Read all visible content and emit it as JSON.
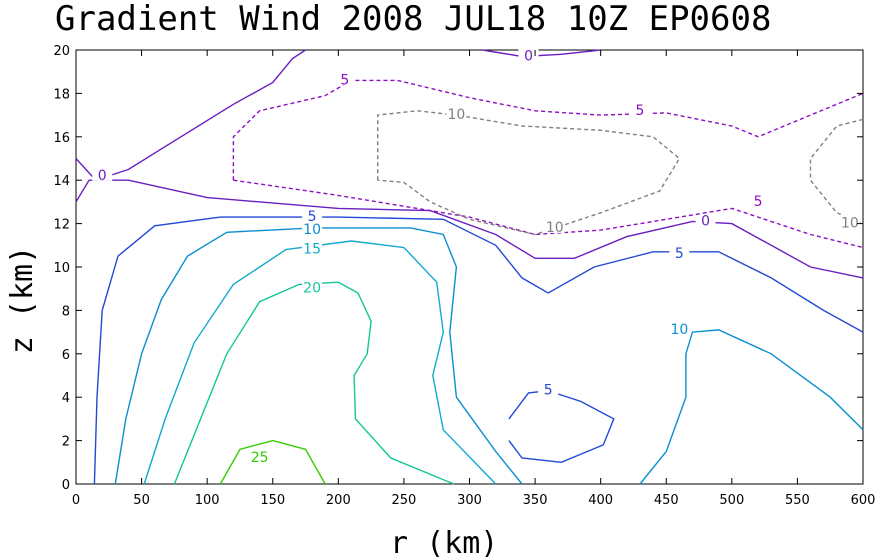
{
  "chart_data": {
    "type": "contour",
    "title": "Gradient Wind 2008 JUL18 10Z  EP0608",
    "xlabel": "r (km)",
    "ylabel": "z (km)",
    "xlim": [
      0,
      600
    ],
    "ylim": [
      0,
      20
    ],
    "x_ticks": [
      0,
      50,
      100,
      150,
      200,
      250,
      300,
      350,
      400,
      450,
      500,
      550,
      600
    ],
    "y_ticks": [
      0,
      2,
      4,
      6,
      8,
      10,
      12,
      14,
      16,
      18,
      20
    ],
    "contours": [
      {
        "level": 25,
        "color": "#33cc00",
        "dashed": false,
        "paths": [
          [
            [
              110,
              0
            ],
            [
              125,
              1.6
            ],
            [
              150,
              2.0
            ],
            [
              175,
              1.6
            ],
            [
              190,
              0
            ]
          ]
        ],
        "labels": [
          {
            "r": 140,
            "z": 1.2,
            "text": "25"
          }
        ]
      },
      {
        "level": 20,
        "color": "#13c69a",
        "dashed": false,
        "paths": [
          [
            [
              75,
              0
            ],
            [
              95,
              3
            ],
            [
              115,
              6
            ],
            [
              140,
              8.4
            ],
            [
              170,
              9.2
            ],
            [
              200,
              9.3
            ],
            [
              215,
              8.8
            ],
            [
              225,
              7.5
            ],
            [
              222,
              6
            ],
            [
              212,
              5
            ],
            [
              213,
              3
            ],
            [
              240,
              1.2
            ],
            [
              288,
              0
            ]
          ]
        ],
        "labels": [
          {
            "r": 180,
            "z": 9.0,
            "text": "20"
          }
        ]
      },
      {
        "level": 15,
        "color": "#12a9cc",
        "dashed": false,
        "paths": [
          [
            [
              52,
              0
            ],
            [
              68,
              3
            ],
            [
              90,
              6.5
            ],
            [
              120,
              9.2
            ],
            [
              160,
              10.8
            ],
            [
              210,
              11.2
            ],
            [
              250,
              10.9
            ],
            [
              275,
              9.3
            ],
            [
              280,
              7
            ],
            [
              272,
              5
            ],
            [
              280,
              2.5
            ],
            [
              320,
              0
            ]
          ]
        ],
        "labels": [
          {
            "r": 180,
            "z": 10.8,
            "text": "15"
          }
        ]
      },
      {
        "level": 10,
        "color": "#0a8fd0",
        "dashed": false,
        "paths": [
          [
            [
              30,
              0
            ],
            [
              38,
              3
            ],
            [
              50,
              6
            ],
            [
              65,
              8.5
            ],
            [
              85,
              10.5
            ],
            [
              115,
              11.6
            ],
            [
              180,
              11.8
            ],
            [
              255,
              11.8
            ],
            [
              280,
              11.5
            ],
            [
              290,
              10
            ],
            [
              285,
              7
            ],
            [
              290,
              4
            ],
            [
              320,
              1.5
            ],
            [
              340,
              0
            ]
          ],
          [
            [
              430,
              0
            ],
            [
              450,
              1.5
            ],
            [
              465,
              4
            ],
            [
              465,
              6
            ],
            [
              470,
              7
            ],
            [
              490,
              7.1
            ],
            [
              530,
              6
            ],
            [
              575,
              4
            ],
            [
              600,
              2.5
            ]
          ]
        ],
        "labels": [
          {
            "r": 180,
            "z": 11.7,
            "text": "10"
          },
          {
            "r": 460,
            "z": 7.1,
            "text": "10"
          }
        ]
      },
      {
        "level": 5,
        "color": "#2249d6",
        "dashed": false,
        "paths": [
          [
            [
              14,
              0
            ],
            [
              16,
              4
            ],
            [
              20,
              8
            ],
            [
              32,
              10.5
            ],
            [
              60,
              11.9
            ],
            [
              110,
              12.3
            ],
            [
              200,
              12.3
            ],
            [
              280,
              12.2
            ],
            [
              320,
              11
            ],
            [
              340,
              9.5
            ],
            [
              360,
              8.8
            ],
            [
              395,
              10
            ],
            [
              440,
              10.7
            ],
            [
              490,
              10.7
            ],
            [
              530,
              9.5
            ],
            [
              570,
              8
            ],
            [
              600,
              7
            ]
          ],
          [
            [
              330,
              3
            ],
            [
              345,
              4.2
            ],
            [
              360,
              4.3
            ],
            [
              385,
              3.8
            ],
            [
              410,
              3
            ],
            [
              402,
              1.8
            ],
            [
              370,
              1.0
            ],
            [
              340,
              1.2
            ],
            [
              330,
              2
            ]
          ]
        ],
        "labels": [
          {
            "r": 180,
            "z": 12.3,
            "text": "5"
          },
          {
            "r": 460,
            "z": 10.6,
            "text": "5"
          },
          {
            "r": 360,
            "z": 4.3,
            "text": "5"
          }
        ]
      },
      {
        "level": 0,
        "color": "#6a1fbf",
        "dashed": false,
        "paths": [
          [
            [
              0,
              13
            ],
            [
              10,
              14
            ],
            [
              40,
              14
            ],
            [
              100,
              13.2
            ],
            [
              200,
              12.7
            ],
            [
              270,
              12.6
            ],
            [
              320,
              11.5
            ],
            [
              350,
              10.4
            ],
            [
              380,
              10.4
            ],
            [
              420,
              11.4
            ],
            [
              470,
              12.1
            ],
            [
              500,
              12
            ],
            [
              530,
              11
            ],
            [
              560,
              10
            ],
            [
              600,
              9.5
            ]
          ],
          [
            [
              0,
              15
            ],
            [
              15,
              14
            ],
            [
              40,
              14.5
            ],
            [
              80,
              16
            ],
            [
              120,
              17.5
            ],
            [
              150,
              18.5
            ],
            [
              165,
              19.6
            ],
            [
              175,
              20
            ]
          ],
          [
            [
              310,
              20
            ],
            [
              340,
              19.7
            ],
            [
              370,
              19.8
            ],
            [
              400,
              20
            ]
          ]
        ],
        "labels": [
          {
            "r": 20,
            "z": 14.2,
            "text": "0"
          },
          {
            "r": 345,
            "z": 19.7,
            "text": "0"
          },
          {
            "r": 480,
            "z": 12.1,
            "text": "0"
          }
        ]
      },
      {
        "level": -5,
        "color": "#8d0fc4",
        "dashed": true,
        "paths": [
          [
            [
              120,
              14
            ],
            [
              120,
              16
            ],
            [
              140,
              17.2
            ],
            [
              190,
              17.9
            ],
            [
              210,
              18.6
            ],
            [
              245,
              18.6
            ],
            [
              300,
              17.8
            ],
            [
              350,
              17.2
            ],
            [
              400,
              17
            ],
            [
              450,
              17.1
            ],
            [
              500,
              16.5
            ],
            [
              520,
              16
            ],
            [
              560,
              17
            ],
            [
              600,
              18
            ]
          ],
          [
            [
              120,
              14
            ],
            [
              200,
              13.3
            ],
            [
              300,
              12.3
            ],
            [
              350,
              11.5
            ],
            [
              400,
              11.7
            ],
            [
              450,
              12.2
            ],
            [
              500,
              12.7
            ],
            [
              560,
              11.5
            ],
            [
              600,
              10.9
            ]
          ]
        ],
        "labels": [
          {
            "r": 205,
            "z": 18.6,
            "text": "5"
          },
          {
            "r": 430,
            "z": 17.2,
            "text": "5"
          },
          {
            "r": 520,
            "z": 13.0,
            "text": "5"
          }
        ]
      },
      {
        "level": -10,
        "color": "#808080",
        "dashed": true,
        "paths": [
          [
            [
              230,
              14
            ],
            [
              230,
              17
            ],
            [
              260,
              17.2
            ],
            [
              290,
              17
            ],
            [
              340,
              16.5
            ],
            [
              400,
              16.3
            ],
            [
              440,
              16
            ],
            [
              460,
              15
            ],
            [
              445,
              13.5
            ],
            [
              400,
              12.5
            ],
            [
              350,
              11.5
            ],
            [
              300,
              12.2
            ],
            [
              270,
              13
            ],
            [
              250,
              13.9
            ],
            [
              230,
              14
            ]
          ],
          [
            [
              600,
              16.8
            ],
            [
              580,
              16.5
            ],
            [
              560,
              15
            ],
            [
              560,
              14
            ],
            [
              580,
              12.5
            ],
            [
              600,
              12
            ]
          ]
        ],
        "labels": [
          {
            "r": 290,
            "z": 17.0,
            "text": "10"
          },
          {
            "r": 365,
            "z": 11.8,
            "text": "10"
          },
          {
            "r": 590,
            "z": 12.0,
            "text": "10"
          }
        ]
      }
    ]
  }
}
